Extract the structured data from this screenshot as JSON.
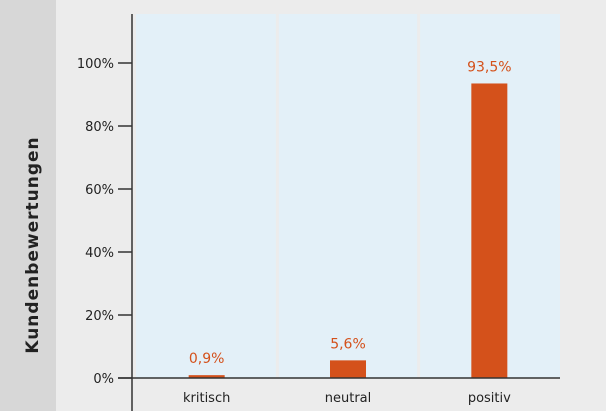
{
  "chart_data": {
    "type": "bar",
    "categories": [
      "kritisch",
      "neutral",
      "positiv"
    ],
    "values": [
      0.9,
      5.6,
      93.5
    ],
    "value_labels": [
      "0,9%",
      "5,6%",
      "93,5%"
    ],
    "ylabel": "Kundenbewertungen",
    "xlabel": "",
    "ylim": [
      0,
      100
    ],
    "y_ticks": [
      0,
      20,
      40,
      60,
      80,
      100
    ],
    "y_tick_labels": [
      "0%",
      "20%",
      "40%",
      "60%",
      "80%",
      "100%"
    ],
    "grid": false,
    "legend": "none"
  },
  "colors": {
    "bar": "#d4511b",
    "value_label": "#d4511b",
    "plot_band": "#e3f0f8",
    "outer_background": "#ececec",
    "ylabel_panel": "#d7d7d7",
    "axis": "#333333",
    "text": "#222222"
  }
}
